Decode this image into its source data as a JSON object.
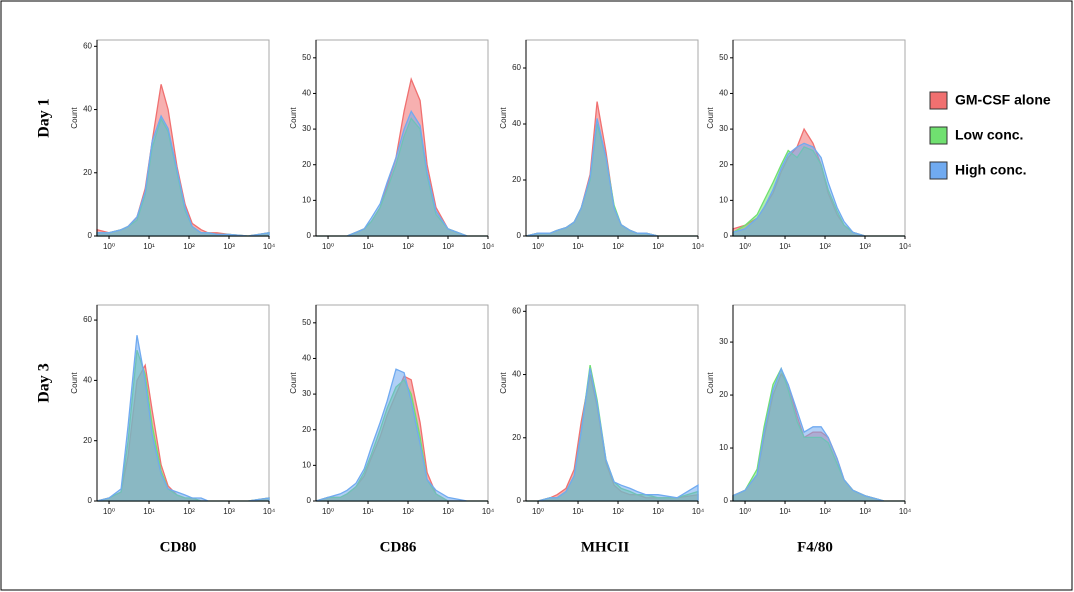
{
  "rows": [
    "Day 1",
    "Day 3"
  ],
  "chart_data": [
    {
      "type": "area",
      "ylabel": "Count",
      "xscale": "log",
      "xlim": [
        0.5,
        10000
      ],
      "ylim": [
        0,
        62
      ],
      "yticks": [
        0,
        20,
        40,
        60
      ],
      "xticks": [
        {
          "value": 1,
          "label": "10⁰"
        },
        {
          "value": 10,
          "label": "10¹"
        },
        {
          "value": 100,
          "label": "10²"
        },
        {
          "value": 1000,
          "label": "10³"
        },
        {
          "value": 10000,
          "label": "10⁴"
        }
      ],
      "x": [
        0.5,
        1,
        2,
        3,
        5,
        8,
        12,
        20,
        30,
        50,
        80,
        120,
        200,
        300,
        500,
        1000,
        3000,
        10000
      ],
      "series": [
        {
          "name": "GM-CSF alone",
          "color": "#f07070",
          "values": [
            2,
            1,
            2,
            3,
            6,
            15,
            30,
            48,
            40,
            22,
            10,
            4,
            2,
            1,
            1,
            0.5,
            0,
            1
          ]
        },
        {
          "name": "Low conc.",
          "color": "#70e070",
          "values": [
            1,
            1,
            2,
            3,
            5,
            13,
            28,
            37,
            33,
            20,
            8,
            3,
            1,
            1,
            0.5,
            0.5,
            0,
            1
          ]
        },
        {
          "name": "High conc.",
          "color": "#70aaf0",
          "values": [
            1,
            1,
            2,
            3,
            6,
            14,
            30,
            38,
            34,
            21,
            9,
            3,
            1,
            1,
            0.5,
            0.5,
            0,
            1
          ]
        }
      ]
    },
    {
      "type": "area",
      "ylabel": "Count",
      "xscale": "log",
      "xlim": [
        0.5,
        10000
      ],
      "ylim": [
        0,
        55
      ],
      "yticks": [
        0,
        10,
        20,
        30,
        40,
        50
      ],
      "xticks": [
        {
          "value": 1,
          "label": "10⁰"
        },
        {
          "value": 10,
          "label": "10¹"
        },
        {
          "value": 100,
          "label": "10²"
        },
        {
          "value": 1000,
          "label": "10³"
        },
        {
          "value": 10000,
          "label": "10⁴"
        }
      ],
      "x": [
        0.5,
        1,
        2,
        3,
        5,
        8,
        12,
        20,
        30,
        50,
        80,
        120,
        200,
        300,
        500,
        1000,
        3000,
        10000
      ],
      "series": [
        {
          "name": "GM-CSF alone",
          "color": "#f07070",
          "values": [
            0,
            0,
            0,
            0,
            1,
            2,
            4,
            8,
            14,
            22,
            35,
            44,
            38,
            20,
            8,
            2,
            0,
            0
          ]
        },
        {
          "name": "Low conc.",
          "color": "#70e070",
          "values": [
            0,
            0,
            0,
            0,
            1,
            2,
            4,
            8,
            13,
            20,
            28,
            33,
            30,
            17,
            6,
            2,
            0,
            0
          ]
        },
        {
          "name": "High conc.",
          "color": "#70aaf0",
          "values": [
            0,
            0,
            0,
            0,
            1,
            2,
            5,
            9,
            15,
            22,
            30,
            35,
            31,
            18,
            7,
            2,
            0,
            0
          ]
        }
      ]
    },
    {
      "type": "area",
      "ylabel": "Count",
      "xscale": "log",
      "xlim": [
        0.5,
        10000
      ],
      "ylim": [
        0,
        70
      ],
      "yticks": [
        0,
        20,
        40,
        60
      ],
      "xticks": [
        {
          "value": 1,
          "label": "10⁰"
        },
        {
          "value": 10,
          "label": "10¹"
        },
        {
          "value": 100,
          "label": "10²"
        },
        {
          "value": 1000,
          "label": "10³"
        },
        {
          "value": 10000,
          "label": "10⁴"
        }
      ],
      "x": [
        0.5,
        1,
        2,
        3,
        5,
        8,
        12,
        20,
        30,
        50,
        80,
        120,
        200,
        300,
        500,
        1000,
        3000,
        10000
      ],
      "series": [
        {
          "name": "GM-CSF alone",
          "color": "#f07070",
          "values": [
            0,
            1,
            1,
            2,
            3,
            5,
            10,
            22,
            48,
            30,
            10,
            4,
            2,
            1,
            1,
            0,
            0,
            0
          ]
        },
        {
          "name": "Low conc.",
          "color": "#70e070",
          "values": [
            0,
            1,
            1,
            2,
            3,
            5,
            10,
            20,
            40,
            28,
            11,
            4,
            2,
            1,
            1,
            0,
            0,
            0
          ]
        },
        {
          "name": "High conc.",
          "color": "#70aaf0",
          "values": [
            0,
            1,
            1,
            2,
            3,
            5,
            10,
            21,
            42,
            28,
            10,
            4,
            2,
            1,
            1,
            0,
            0,
            0
          ]
        }
      ]
    },
    {
      "type": "area",
      "ylabel": "Count",
      "xscale": "log",
      "xlim": [
        0.5,
        10000
      ],
      "ylim": [
        0,
        55
      ],
      "yticks": [
        0,
        10,
        20,
        30,
        40,
        50
      ],
      "xticks": [
        {
          "value": 1,
          "label": "10⁰"
        },
        {
          "value": 10,
          "label": "10¹"
        },
        {
          "value": 100,
          "label": "10²"
        },
        {
          "value": 1000,
          "label": "10³"
        },
        {
          "value": 10000,
          "label": "10⁴"
        }
      ],
      "x": [
        0.5,
        1,
        2,
        3,
        5,
        8,
        12,
        20,
        30,
        50,
        80,
        120,
        200,
        300,
        500,
        1000,
        3000,
        10000
      ],
      "series": [
        {
          "name": "GM-CSF alone",
          "color": "#f07070",
          "values": [
            2,
            3,
            5,
            8,
            12,
            18,
            22,
            25,
            30,
            26,
            20,
            12,
            6,
            3,
            1,
            0,
            0,
            0
          ]
        },
        {
          "name": "Low conc.",
          "color": "#70e070",
          "values": [
            1,
            3,
            6,
            10,
            15,
            20,
            24,
            22,
            25,
            24,
            20,
            13,
            7,
            3,
            1,
            0,
            0,
            0
          ]
        },
        {
          "name": "High conc.",
          "color": "#70aaf0",
          "values": [
            1,
            2,
            5,
            8,
            13,
            19,
            23,
            25,
            26,
            25,
            22,
            15,
            8,
            4,
            1,
            0,
            0,
            0
          ]
        }
      ]
    },
    {
      "type": "area",
      "ylabel": "Count",
      "xlabel": "CD80",
      "xscale": "log",
      "xlim": [
        0.5,
        10000
      ],
      "ylim": [
        0,
        65
      ],
      "yticks": [
        0,
        20,
        40,
        60
      ],
      "xticks": [
        {
          "value": 1,
          "label": "10⁰"
        },
        {
          "value": 10,
          "label": "10¹"
        },
        {
          "value": 100,
          "label": "10²"
        },
        {
          "value": 1000,
          "label": "10³"
        },
        {
          "value": 10000,
          "label": "10⁴"
        }
      ],
      "x": [
        0.5,
        1,
        2,
        3,
        5,
        8,
        12,
        20,
        30,
        50,
        80,
        120,
        200,
        300,
        500,
        1000,
        3000,
        10000
      ],
      "series": [
        {
          "name": "GM-CSF alone",
          "color": "#f07070",
          "values": [
            0,
            1,
            3,
            15,
            40,
            45,
            30,
            12,
            5,
            2,
            1,
            1,
            0,
            0,
            0,
            0,
            0,
            1
          ]
        },
        {
          "name": "Low conc.",
          "color": "#70e070",
          "values": [
            0,
            1,
            3,
            20,
            50,
            42,
            25,
            10,
            4,
            2,
            1,
            1,
            0,
            0,
            0,
            0,
            0,
            1
          ]
        },
        {
          "name": "High conc.",
          "color": "#70aaf0",
          "values": [
            0,
            1,
            4,
            25,
            55,
            40,
            22,
            9,
            4,
            3,
            2,
            1,
            1,
            0,
            0,
            0,
            0,
            1
          ]
        }
      ]
    },
    {
      "type": "area",
      "ylabel": "Count",
      "xlabel": "CD86",
      "xscale": "log",
      "xlim": [
        0.5,
        10000
      ],
      "ylim": [
        0,
        55
      ],
      "yticks": [
        0,
        10,
        20,
        30,
        40,
        50
      ],
      "xticks": [
        {
          "value": 1,
          "label": "10⁰"
        },
        {
          "value": 10,
          "label": "10¹"
        },
        {
          "value": 100,
          "label": "10²"
        },
        {
          "value": 1000,
          "label": "10³"
        },
        {
          "value": 10000,
          "label": "10⁴"
        }
      ],
      "x": [
        0.5,
        1,
        2,
        3,
        5,
        8,
        12,
        20,
        30,
        50,
        80,
        120,
        200,
        300,
        500,
        1000,
        3000,
        10000
      ],
      "series": [
        {
          "name": "GM-CSF alone",
          "color": "#f07070",
          "values": [
            0,
            1,
            1,
            2,
            4,
            7,
            12,
            18,
            24,
            30,
            35,
            34,
            22,
            8,
            2,
            0,
            0,
            0
          ]
        },
        {
          "name": "Low conc.",
          "color": "#70e070",
          "values": [
            0,
            1,
            1,
            2,
            4,
            8,
            13,
            20,
            26,
            32,
            34,
            30,
            18,
            6,
            2,
            0,
            0,
            0
          ]
        },
        {
          "name": "High conc.",
          "color": "#70aaf0",
          "values": [
            0,
            1,
            2,
            3,
            5,
            9,
            15,
            22,
            28,
            37,
            36,
            28,
            16,
            6,
            3,
            1,
            0,
            0
          ]
        }
      ]
    },
    {
      "type": "area",
      "ylabel": "Count",
      "xlabel": "MHCII",
      "xscale": "log",
      "xlim": [
        0.5,
        10000
      ],
      "ylim": [
        0,
        62
      ],
      "yticks": [
        0,
        20,
        40,
        60
      ],
      "xticks": [
        {
          "value": 1,
          "label": "10⁰"
        },
        {
          "value": 10,
          "label": "10¹"
        },
        {
          "value": 100,
          "label": "10²"
        },
        {
          "value": 1000,
          "label": "10³"
        },
        {
          "value": 10000,
          "label": "10⁴"
        }
      ],
      "x": [
        0.5,
        1,
        2,
        3,
        5,
        8,
        12,
        20,
        30,
        50,
        80,
        120,
        200,
        300,
        500,
        1000,
        3000,
        10000
      ],
      "series": [
        {
          "name": "GM-CSF alone",
          "color": "#f07070",
          "values": [
            0,
            0,
            1,
            2,
            4,
            10,
            25,
            40,
            30,
            12,
            5,
            3,
            2,
            2,
            1,
            1,
            1,
            2
          ]
        },
        {
          "name": "Low conc.",
          "color": "#70e070",
          "values": [
            0,
            0,
            1,
            1,
            3,
            8,
            22,
            43,
            32,
            13,
            6,
            4,
            3,
            2,
            2,
            1,
            1,
            3
          ]
        },
        {
          "name": "High conc.",
          "color": "#70aaf0",
          "values": [
            0,
            0,
            1,
            1,
            3,
            8,
            22,
            42,
            31,
            13,
            6,
            5,
            4,
            3,
            2,
            2,
            1,
            5
          ]
        }
      ]
    },
    {
      "type": "area",
      "ylabel": "Count",
      "xlabel": "F4/80",
      "xscale": "log",
      "xlim": [
        0.5,
        10000
      ],
      "ylim": [
        0,
        37
      ],
      "yticks": [
        0,
        10,
        20,
        30
      ],
      "xticks": [
        {
          "value": 1,
          "label": "10⁰"
        },
        {
          "value": 10,
          "label": "10¹"
        },
        {
          "value": 100,
          "label": "10²"
        },
        {
          "value": 1000,
          "label": "10³"
        },
        {
          "value": 10000,
          "label": "10⁴"
        }
      ],
      "x": [
        0.5,
        1,
        2,
        3,
        5,
        8,
        12,
        20,
        30,
        50,
        80,
        120,
        200,
        300,
        500,
        1000,
        3000,
        10000
      ],
      "series": [
        {
          "name": "GM-CSF alone",
          "color": "#f07070",
          "values": [
            1,
            2,
            5,
            12,
            20,
            24,
            22,
            16,
            12,
            13,
            13,
            12,
            8,
            4,
            2,
            1,
            0,
            0
          ]
        },
        {
          "name": "Low conc.",
          "color": "#70e070",
          "values": [
            1,
            2,
            6,
            14,
            22,
            25,
            21,
            15,
            12,
            12,
            12,
            11,
            7,
            4,
            2,
            1,
            0,
            0
          ]
        },
        {
          "name": "High conc.",
          "color": "#70aaf0",
          "values": [
            1,
            2,
            5,
            13,
            21,
            25,
            22,
            17,
            13,
            14,
            14,
            12,
            8,
            4,
            2,
            1,
            0,
            0
          ]
        }
      ]
    }
  ]
}
